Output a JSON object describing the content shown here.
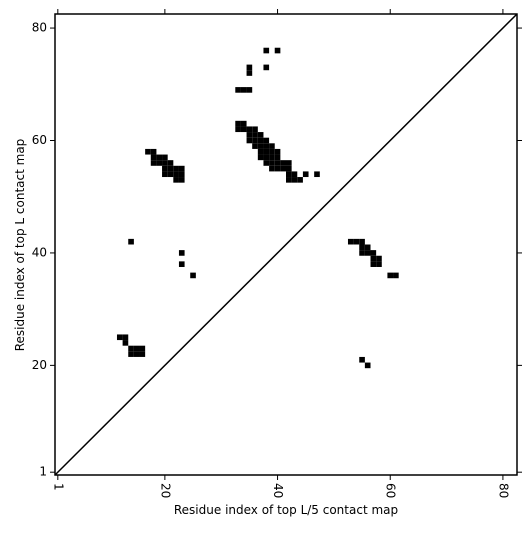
{
  "chart_data": {
    "type": "scatter",
    "xlabel": "Residue index of top L/5 contact map",
    "ylabel": "Residue index of top L contact map",
    "color": "#000000",
    "x": [
      38,
      40,
      35,
      35,
      38,
      33,
      34,
      35,
      33,
      34,
      33,
      34,
      35,
      36,
      35,
      36,
      37,
      35,
      36,
      37,
      38,
      36,
      37,
      38,
      39,
      37,
      38,
      39,
      40,
      37,
      38,
      39,
      40,
      38,
      39,
      40,
      41,
      42,
      39,
      40,
      41,
      42,
      42,
      43,
      42,
      43,
      44,
      45,
      47,
      17,
      18,
      18,
      19,
      20,
      18,
      19,
      20,
      21,
      20,
      21,
      22,
      23,
      20,
      21,
      22,
      23,
      22,
      23,
      14,
      23,
      23,
      25,
      12,
      13,
      13,
      14,
      15,
      16,
      14,
      15,
      16,
      53,
      54,
      55,
      55,
      56,
      55,
      56,
      57,
      57,
      58,
      57,
      58,
      60,
      61,
      55,
      56
    ],
    "y": [
      76,
      76,
      73,
      72,
      73,
      69,
      69,
      69,
      63,
      63,
      62,
      62,
      62,
      62,
      61,
      61,
      61,
      60,
      60,
      60,
      60,
      59,
      59,
      59,
      59,
      58,
      58,
      58,
      58,
      57,
      57,
      57,
      57,
      56,
      56,
      56,
      56,
      56,
      55,
      55,
      55,
      55,
      54,
      54,
      53,
      53,
      53,
      54,
      54,
      58,
      58,
      57,
      57,
      57,
      56,
      56,
      56,
      56,
      55,
      55,
      55,
      55,
      54,
      54,
      54,
      54,
      53,
      53,
      42,
      40,
      38,
      36,
      25,
      25,
      24,
      23,
      23,
      23,
      22,
      22,
      22,
      42,
      42,
      42,
      41,
      41,
      40,
      40,
      40,
      39,
      39,
      38,
      38,
      36,
      36,
      21,
      20
    ],
    "xlim": [
      0.5,
      82.5
    ],
    "ylim": [
      0.5,
      82.5
    ],
    "xticks": [
      1,
      20,
      40,
      60,
      80
    ],
    "yticks": [
      1,
      20,
      40,
      60,
      80
    ],
    "diagonal": true
  }
}
